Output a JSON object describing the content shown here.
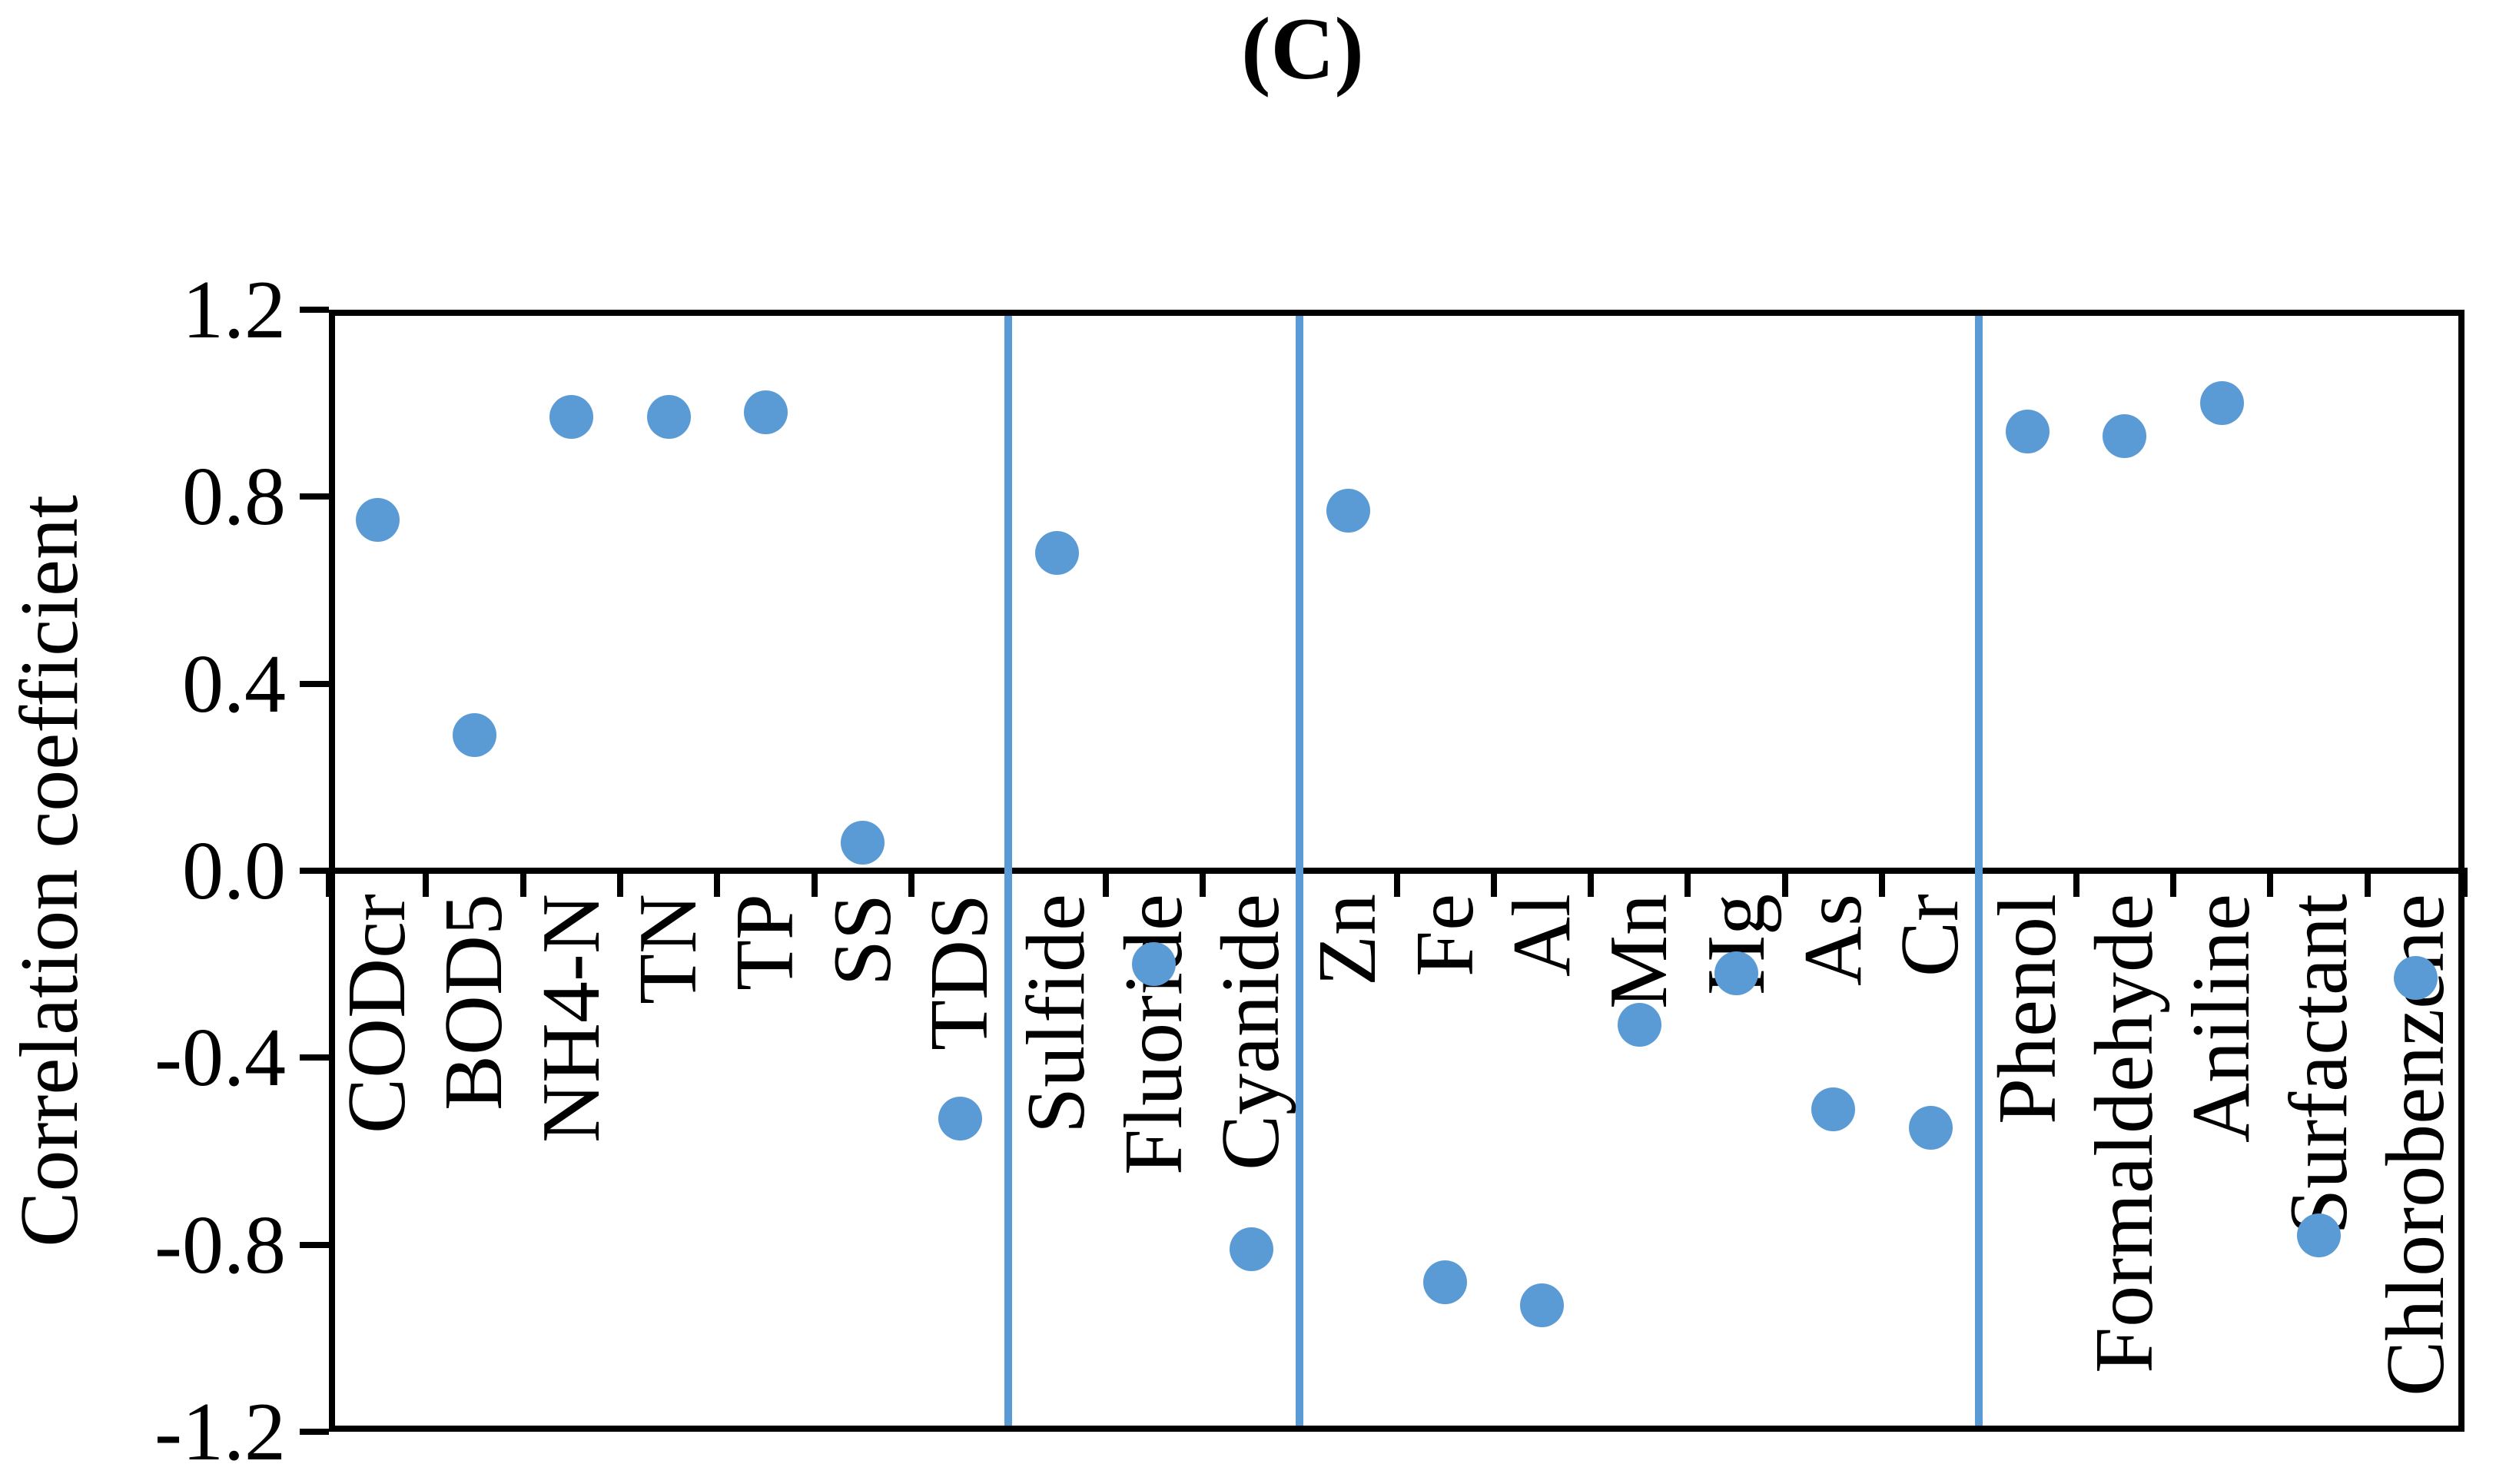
{
  "title": "(C)",
  "chart_data": {
    "type": "scatter",
    "title": "(C)",
    "xlabel": "",
    "ylabel": "Correlation coefficient",
    "ylim": [
      -1.2,
      1.2
    ],
    "ytick_labels": [
      "1.2",
      "0.8",
      "0.4",
      "0.0",
      "-0.4",
      "-0.8",
      "-1.2"
    ],
    "yticks": [
      1.2,
      0.8,
      0.4,
      0.0,
      -0.4,
      -0.8,
      -1.2
    ],
    "categories": [
      "CODcr",
      "BOD5",
      "NH4-N",
      "TN",
      "TP",
      "SS",
      "TDS",
      "Sulfide",
      "Fluoride",
      "Cyanide",
      "Zn",
      "Fe",
      "Al",
      "Mn",
      "Hg",
      "As",
      "Cr",
      "Phenol",
      "Formaldehyde",
      "Aniline",
      "Surfactant",
      "Chlorobenzene"
    ],
    "values": [
      0.75,
      0.29,
      0.97,
      0.97,
      0.98,
      0.06,
      -0.53,
      0.68,
      -0.2,
      -0.81,
      0.77,
      -0.88,
      -0.93,
      -0.33,
      -0.22,
      -0.51,
      -0.55,
      0.94,
      0.93,
      1.0,
      -0.78,
      -0.23
    ],
    "group_dividers_after": [
      "TDS",
      "Cyanide",
      "Cr"
    ],
    "dividers_after_indices": [
      6,
      9,
      16
    ],
    "grid": "off",
    "legend": "none",
    "label_rotation": "vertical-bottom-to-top",
    "point_color": "#5b9bd5",
    "divider_color": "#5b9bd5",
    "axis_color": "#000000",
    "background_color": "#ffffff"
  }
}
